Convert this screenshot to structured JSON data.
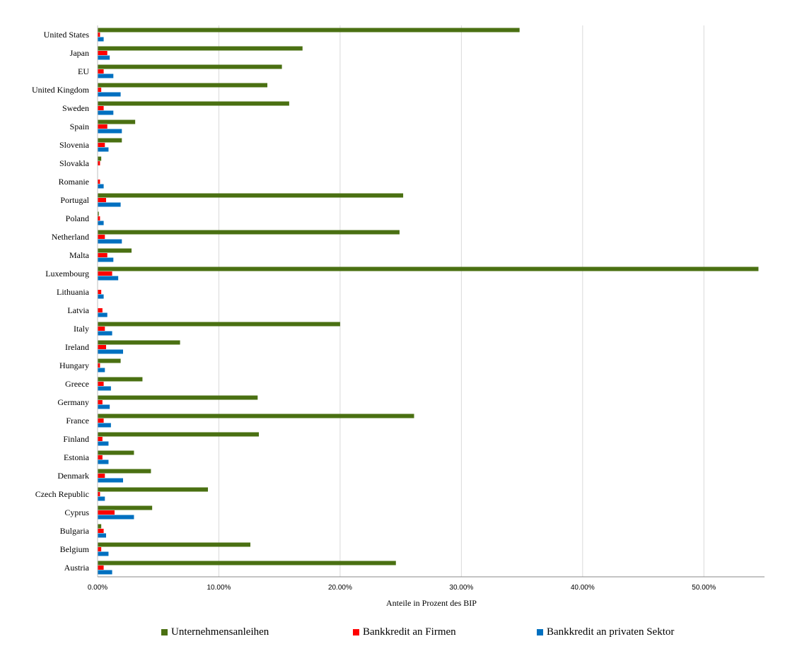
{
  "chart_data": {
    "type": "bar",
    "orientation": "horizontal",
    "categories": [
      "United States",
      "Japan",
      "EU",
      "United Kingdom",
      "Sweden",
      "Spain",
      "Slovenia",
      "Slovakla",
      "Romanie",
      "Portugal",
      "Poland",
      "Netherland",
      "Malta",
      "Luxembourg",
      "Lithuania",
      "Latvia",
      "Italy",
      "Ireland",
      "Hungary",
      "Greece",
      "Germany",
      "France",
      "Finland",
      "Estonia",
      "Denmark",
      "Czech Republic",
      "Cyprus",
      "Bulgaria",
      "Belgium",
      "Austria"
    ],
    "series": [
      {
        "name": "Unternehmensanleihen",
        "color": "#4a7012",
        "values": [
          34.8,
          16.9,
          15.2,
          14.0,
          15.8,
          3.1,
          2.0,
          0.3,
          0.0,
          25.2,
          0.1,
          24.9,
          2.8,
          54.5,
          0.0,
          0.0,
          20.0,
          6.8,
          1.9,
          3.7,
          13.2,
          26.1,
          13.3,
          3.0,
          4.4,
          9.1,
          4.5,
          0.3,
          12.6,
          24.6
        ]
      },
      {
        "name": "Bankkredit an Firmen",
        "color": "#ff0000",
        "values": [
          0.2,
          0.8,
          0.5,
          0.3,
          0.5,
          0.8,
          0.6,
          0.2,
          0.2,
          0.7,
          0.2,
          0.6,
          0.8,
          1.2,
          0.3,
          0.4,
          0.6,
          0.7,
          0.2,
          0.5,
          0.4,
          0.5,
          0.4,
          0.4,
          0.6,
          0.2,
          1.4,
          0.5,
          0.3,
          0.5
        ]
      },
      {
        "name": "Bankkredit an privaten Sektor",
        "color": "#0070c0",
        "values": [
          0.5,
          1.0,
          1.3,
          1.9,
          1.3,
          2.0,
          0.9,
          0.0,
          0.5,
          1.9,
          0.5,
          2.0,
          1.3,
          1.7,
          0.5,
          0.8,
          1.2,
          2.1,
          0.6,
          1.1,
          1.0,
          1.1,
          0.9,
          0.9,
          2.1,
          0.6,
          3.0,
          0.7,
          0.9,
          1.2
        ]
      }
    ],
    "xlim": [
      0,
      55
    ],
    "xticks": [
      "0.00%",
      "10.00%",
      "20.00%",
      "30.00%",
      "40.00%",
      "50.00%"
    ],
    "xlabel": "Anteile in Prozent des BIP",
    "ylabel": "",
    "grid": "vertical",
    "legend": "bottom"
  }
}
